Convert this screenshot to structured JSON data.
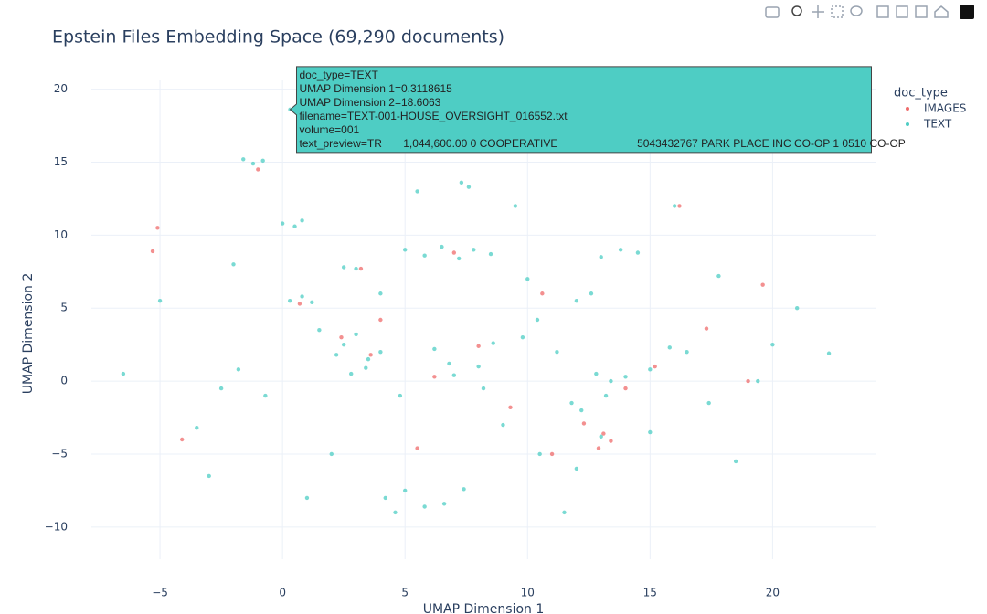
{
  "chart_data": {
    "type": "scatter",
    "title": "Epstein Files Embedding Space (69,290 documents)",
    "x_label": "UMAP Dimension 1",
    "y_label": "UMAP Dimension 2",
    "legend_title": "doc_type",
    "legend_position": "right",
    "grid": true,
    "xlim": [
      -7.8,
      24.2
    ],
    "ylim": [
      -12.2,
      20.6
    ],
    "xticks": [
      {
        "value": -5,
        "label": "−5"
      },
      0,
      5,
      10,
      15,
      20
    ],
    "yticks": [
      {
        "value": -10,
        "label": "−10"
      },
      {
        "value": -5,
        "label": "−5"
      },
      0,
      5,
      10,
      15,
      20
    ],
    "series": [
      {
        "name": "IMAGES",
        "color": "#ef6b6b",
        "x": [
          -5.1,
          -5.3,
          -4.1,
          -1.0,
          2.4,
          3.6,
          4.0,
          5.5,
          6.2,
          8.0,
          9.3,
          10.6,
          12.3,
          13.1,
          13.4,
          12.9,
          17.3,
          19.0,
          19.6,
          15.2,
          11.0,
          3.2,
          7.0,
          14.0,
          16.2,
          0.7
        ],
        "y": [
          10.5,
          8.9,
          -4.0,
          14.5,
          3.0,
          1.8,
          4.2,
          -4.6,
          0.3,
          2.4,
          -1.8,
          6.0,
          -2.9,
          -3.6,
          -4.1,
          -4.6,
          3.6,
          0.0,
          6.6,
          1.0,
          -5.0,
          7.7,
          8.8,
          -0.5,
          12.0,
          5.3
        ]
      },
      {
        "name": "TEXT",
        "color": "#4ecdc4",
        "x": [
          0.3118615,
          -1.6,
          -1.2,
          -0.8,
          0.0,
          0.5,
          0.8,
          0.3,
          0.8,
          1.2,
          2.5,
          3.0,
          5.0,
          5.8,
          6.5,
          7.2,
          7.8,
          8.5,
          7.3,
          7.6,
          2.5,
          3.0,
          3.5,
          4.0,
          2.8,
          3.4,
          2.2,
          6.2,
          6.8,
          7.0,
          8.0,
          8.6,
          8.2,
          9.8,
          10.4,
          11.2,
          12.0,
          12.6,
          13.0,
          13.8,
          14.5,
          15.0,
          12.8,
          13.4,
          14.0,
          13.2,
          12.2,
          11.8,
          15.8,
          16.5,
          17.4,
          4.2,
          5.0,
          5.8,
          6.6,
          7.4,
          4.6,
          -2.5,
          -1.8,
          -0.7,
          4.8,
          10.5,
          9.0,
          13.0,
          11.5,
          -3.5,
          -5.0,
          20.0,
          19.4,
          21.0,
          -6.5,
          2.0,
          15.0,
          18.5,
          12.0,
          5.5,
          16.0,
          9.5,
          -2.0,
          1.5,
          4.0,
          10.0,
          17.8,
          22.3,
          -3.0,
          1.0
        ],
        "y": [
          18.6063,
          15.2,
          14.9,
          15.1,
          10.8,
          10.6,
          11.0,
          5.5,
          5.8,
          5.4,
          7.8,
          7.7,
          9.0,
          8.6,
          9.2,
          8.4,
          9.0,
          8.7,
          13.6,
          13.3,
          2.5,
          3.2,
          1.5,
          2.0,
          0.5,
          0.9,
          1.8,
          2.2,
          1.2,
          0.4,
          1.0,
          2.6,
          -0.5,
          3.0,
          4.2,
          2.0,
          5.5,
          6.0,
          8.5,
          9.0,
          8.8,
          0.8,
          0.5,
          0.0,
          0.3,
          -1.0,
          -2.0,
          -1.5,
          2.3,
          2.0,
          -1.5,
          -8.0,
          -7.5,
          -8.6,
          -8.4,
          -7.4,
          -9.0,
          -0.5,
          0.8,
          -1.0,
          -1.0,
          -5.0,
          -3.0,
          -3.8,
          -9.0,
          -3.2,
          5.5,
          2.5,
          0.0,
          5.0,
          0.5,
          -5.0,
          -3.5,
          -5.5,
          -6.0,
          13.0,
          12.0,
          12.0,
          8.0,
          3.5,
          6.0,
          7.0,
          7.2,
          1.9,
          -6.5,
          -8.0
        ]
      }
    ],
    "hover": [
      "doc_type=TEXT",
      "UMAP Dimension 1=0.3118615",
      "UMAP Dimension 2=18.6063",
      "filename=TEXT-001-HOUSE_OVERSIGHT_016552.txt",
      "volume=001",
      "text_preview=TR       1,044,600.00 0 COOPERATIVE                          5043432767 PARK PLACE INC CO-OP 1 0510 CO-OP"
    ]
  }
}
